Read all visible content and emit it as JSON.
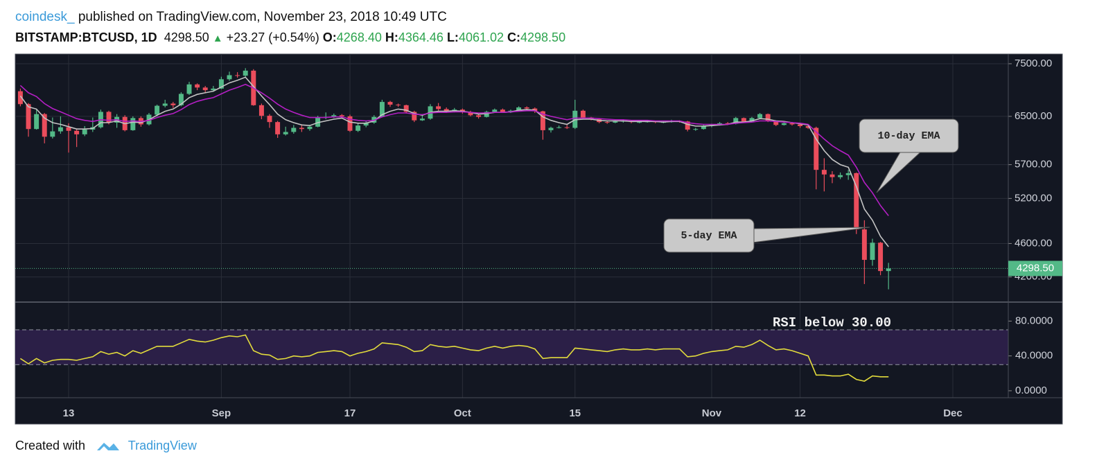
{
  "header": {
    "author": "coindesk_",
    "published": "published on TradingView.com, November 23, 2018 10:49 UTC",
    "symbol": "BITSTAMP:BTCUSD, 1D",
    "price": "4298.50",
    "change": "+23.27 (+0.54%)",
    "ohlc": [
      {
        "label": "O:",
        "value": "4268.40"
      },
      {
        "label": "H:",
        "value": "4364.46"
      },
      {
        "label": "L:",
        "value": "4061.02"
      },
      {
        "label": "C:",
        "value": "4298.50"
      }
    ]
  },
  "footer": {
    "text": "Created with",
    "brand": "TradingView"
  },
  "chart_data": [
    {
      "type": "candlestick",
      "up_color": "#53b987",
      "down_color": "#eb4d5c",
      "log_scale": true,
      "grid": true,
      "ylim": [
        3930,
        7700
      ],
      "yticks": [
        {
          "value": 4200,
          "label": "4200.00"
        },
        {
          "value": 4600,
          "label": "4600.00"
        },
        {
          "value": 5200,
          "label": "5200.00"
        },
        {
          "value": 5700,
          "label": "5700.00"
        },
        {
          "value": 6500,
          "label": "6500.00"
        },
        {
          "value": 7500,
          "label": "7500.00"
        }
      ],
      "last_price": {
        "value": 4298.5,
        "label": "4298.50"
      },
      "open": [
        6960,
        6720,
        6280,
        6540,
        6150,
        6240,
        6310,
        6250,
        6190,
        6270,
        6310,
        6580,
        6390,
        6490,
        6260,
        6470,
        6360,
        6530,
        6690,
        6730,
        6700,
        6910,
        7090,
        7030,
        6980,
        7010,
        7190,
        7270,
        7260,
        7360,
        6700,
        6510,
        6400,
        6190,
        6230,
        6300,
        6280,
        6320,
        6480,
        6490,
        6520,
        6500,
        6250,
        6340,
        6390,
        6490,
        6760,
        6710,
        6700,
        6580,
        6430,
        6460,
        6680,
        6630,
        6590,
        6620,
        6580,
        6520,
        6490,
        6580,
        6620,
        6570,
        6600,
        6660,
        6640,
        6590,
        6260,
        6300,
        6310,
        6300,
        6600,
        6480,
        6450,
        6400,
        6390,
        6410,
        6420,
        6400,
        6400,
        6410,
        6400,
        6400,
        6420,
        6410,
        6270,
        6280,
        6330,
        6350,
        6380,
        6370,
        6470,
        6410,
        6470,
        6540,
        6420,
        6350,
        6380,
        6360,
        6330,
        6300,
        5620,
        5550,
        5510,
        5540,
        5570,
        4780,
        4400,
        4610,
        4268.4
      ],
      "high": [
        7010,
        6740,
        6620,
        6560,
        6480,
        6500,
        6380,
        6280,
        6330,
        6480,
        6620,
        6600,
        6540,
        6520,
        6500,
        6500,
        6560,
        6710,
        6800,
        6760,
        6940,
        7140,
        7110,
        7060,
        7060,
        7240,
        7340,
        7330,
        7410,
        7390,
        6730,
        6540,
        6420,
        6320,
        6350,
        6360,
        6350,
        6510,
        6570,
        6550,
        6540,
        6530,
        6380,
        6420,
        6520,
        6800,
        6780,
        6730,
        6710,
        6600,
        6540,
        6720,
        6740,
        6660,
        6650,
        6640,
        6600,
        6550,
        6600,
        6640,
        6640,
        6620,
        6680,
        6680,
        6660,
        6600,
        6320,
        6340,
        6350,
        6800,
        6620,
        6490,
        6470,
        6420,
        6430,
        6440,
        6430,
        6420,
        6430,
        6420,
        6420,
        6440,
        6430,
        6420,
        6300,
        6350,
        6370,
        6400,
        6400,
        6490,
        6480,
        6490,
        6560,
        6550,
        6430,
        6400,
        6390,
        6370,
        6340,
        6320,
        5800,
        5600,
        5580,
        5620,
        5580,
        4900,
        4660,
        4620,
        4364.46
      ],
      "low": [
        6680,
        6150,
        6270,
        6040,
        6120,
        6200,
        5890,
        5980,
        6160,
        6230,
        6290,
        6360,
        6300,
        6240,
        6250,
        6320,
        6340,
        6500,
        6660,
        6650,
        6680,
        6890,
        6980,
        6930,
        6950,
        7000,
        7160,
        7220,
        7240,
        6690,
        6450,
        6300,
        6130,
        6170,
        6200,
        6230,
        6250,
        6310,
        6450,
        6470,
        6460,
        6230,
        6230,
        6310,
        6370,
        6480,
        6670,
        6670,
        6550,
        6400,
        6420,
        6440,
        6600,
        6560,
        6570,
        6550,
        6500,
        6460,
        6480,
        6560,
        6560,
        6560,
        6590,
        6610,
        6560,
        6100,
        6220,
        6290,
        6280,
        6280,
        6450,
        6430,
        6380,
        6370,
        6380,
        6390,
        6380,
        6380,
        6390,
        6380,
        6380,
        6390,
        6390,
        6240,
        6250,
        6270,
        6310,
        6340,
        6350,
        6360,
        6390,
        6400,
        6460,
        6400,
        6330,
        6340,
        6340,
        6300,
        6280,
        5330,
        5300,
        5420,
        5480,
        5470,
        4720,
        4120,
        4330,
        4220,
        4061.02
      ],
      "close": [
        6720,
        6280,
        6540,
        6150,
        6240,
        6310,
        6250,
        6190,
        6270,
        6310,
        6580,
        6390,
        6490,
        6260,
        6470,
        6360,
        6530,
        6690,
        6730,
        6700,
        6910,
        7090,
        7030,
        6980,
        7010,
        7190,
        7270,
        7260,
        7360,
        6700,
        6510,
        6400,
        6190,
        6230,
        6300,
        6280,
        6320,
        6480,
        6490,
        6520,
        6500,
        6250,
        6340,
        6390,
        6490,
        6760,
        6710,
        6700,
        6580,
        6430,
        6460,
        6680,
        6630,
        6590,
        6620,
        6580,
        6520,
        6490,
        6580,
        6620,
        6570,
        6600,
        6660,
        6640,
        6590,
        6260,
        6300,
        6310,
        6300,
        6600,
        6480,
        6450,
        6400,
        6390,
        6410,
        6420,
        6400,
        6400,
        6410,
        6400,
        6400,
        6420,
        6410,
        6270,
        6280,
        6330,
        6350,
        6380,
        6370,
        6470,
        6410,
        6470,
        6540,
        6420,
        6350,
        6380,
        6360,
        6330,
        6300,
        5620,
        5550,
        5510,
        5540,
        5570,
        4780,
        4400,
        4610,
        4268.4,
        4298.5
      ],
      "series": [
        {
          "name": "5-day EMA",
          "color": "#c4c4c4",
          "values": [
            6870,
            6670,
            6630,
            6470,
            6390,
            6360,
            6320,
            6280,
            6280,
            6290,
            6390,
            6390,
            6420,
            6370,
            6400,
            6390,
            6440,
            6520,
            6590,
            6630,
            6720,
            6840,
            6900,
            6930,
            6960,
            7040,
            7120,
            7170,
            7230,
            7050,
            6870,
            6710,
            6540,
            6440,
            6390,
            6350,
            6340,
            6390,
            6420,
            6450,
            6470,
            6400,
            6380,
            6380,
            6420,
            6530,
            6590,
            6630,
            6610,
            6550,
            6520,
            6570,
            6590,
            6590,
            6600,
            6590,
            6570,
            6540,
            6550,
            6570,
            6570,
            6580,
            6610,
            6620,
            6610,
            6490,
            6430,
            6390,
            6360,
            6440,
            6450,
            6450,
            6430,
            6420,
            6420,
            6420,
            6410,
            6410,
            6410,
            6410,
            6400,
            6410,
            6410,
            6360,
            6330,
            6330,
            6340,
            6350,
            6360,
            6400,
            6400,
            6420,
            6460,
            6450,
            6420,
            6410,
            6390,
            6370,
            6350,
            6110,
            5920,
            5780,
            5700,
            5660,
            5370,
            5050,
            4900,
            4690,
            4560
          ]
        },
        {
          "name": "10-day EMA",
          "color": "#b41fc4",
          "values": [
            7070,
            6930,
            6860,
            6730,
            6640,
            6580,
            6520,
            6460,
            6430,
            6410,
            6440,
            6430,
            6440,
            6410,
            6420,
            6410,
            6430,
            6480,
            6520,
            6550,
            6620,
            6710,
            6770,
            6810,
            6840,
            6910,
            6980,
            7030,
            7090,
            7020,
            6930,
            6830,
            6720,
            6630,
            6570,
            6520,
            6480,
            6480,
            6480,
            6490,
            6490,
            6450,
            6430,
            6420,
            6430,
            6490,
            6530,
            6560,
            6560,
            6540,
            6530,
            6560,
            6570,
            6570,
            6580,
            6580,
            6570,
            6560,
            6560,
            6570,
            6570,
            6580,
            6590,
            6600,
            6600,
            6540,
            6500,
            6470,
            6440,
            6470,
            6470,
            6470,
            6460,
            6450,
            6440,
            6440,
            6430,
            6430,
            6430,
            6420,
            6420,
            6420,
            6420,
            6390,
            6370,
            6360,
            6360,
            6360,
            6360,
            6380,
            6390,
            6400,
            6420,
            6420,
            6410,
            6400,
            6390,
            6380,
            6360,
            6230,
            6110,
            6000,
            5920,
            5850,
            5660,
            5430,
            5280,
            5100,
            4960
          ]
        }
      ]
    },
    {
      "type": "line",
      "annotation": "RSI below 30.00",
      "grid": true,
      "xlim": [
        -0.64,
        122.9
      ],
      "xticks": [
        {
          "value": 6,
          "label": "13"
        },
        {
          "value": 25,
          "label": "Sep"
        },
        {
          "value": 41,
          "label": "17"
        },
        {
          "value": 55,
          "label": "Oct"
        },
        {
          "value": 69,
          "label": "15"
        },
        {
          "value": 86,
          "label": "Nov"
        },
        {
          "value": 97,
          "label": "12"
        },
        {
          "value": 116,
          "label": "Dec"
        }
      ],
      "ylim": [
        -8,
        101
      ],
      "yticks": [
        {
          "value": 0,
          "label": "0.0000"
        },
        {
          "value": 40,
          "label": "40.0000"
        },
        {
          "value": 80,
          "label": "80.0000"
        }
      ],
      "bands": [
        30,
        70
      ],
      "band_color": "#2b1f47",
      "series": [
        {
          "color": "#e3dc3c",
          "values": [
            37,
            31,
            37,
            32,
            35,
            36,
            36,
            35,
            37,
            39,
            45,
            42,
            44,
            40,
            46,
            43,
            47,
            51,
            51,
            51,
            55,
            59,
            57,
            56,
            58,
            61,
            63,
            62,
            64,
            46,
            42,
            41,
            36,
            37,
            40,
            39,
            40,
            44,
            45,
            46,
            45,
            40,
            43,
            45,
            48,
            55,
            54,
            53,
            50,
            45,
            46,
            53,
            51,
            50,
            51,
            49,
            47,
            46,
            49,
            51,
            49,
            51,
            52,
            51,
            48,
            37,
            38,
            38,
            38,
            49,
            48,
            47,
            46,
            45,
            47,
            48,
            47,
            47,
            48,
            47,
            48,
            48,
            48,
            39,
            40,
            43,
            45,
            46,
            47,
            51,
            50,
            53,
            58,
            52,
            47,
            48,
            46,
            43,
            40,
            18,
            18,
            17,
            17,
            19,
            13,
            11,
            17,
            16,
            16
          ]
        }
      ]
    }
  ]
}
